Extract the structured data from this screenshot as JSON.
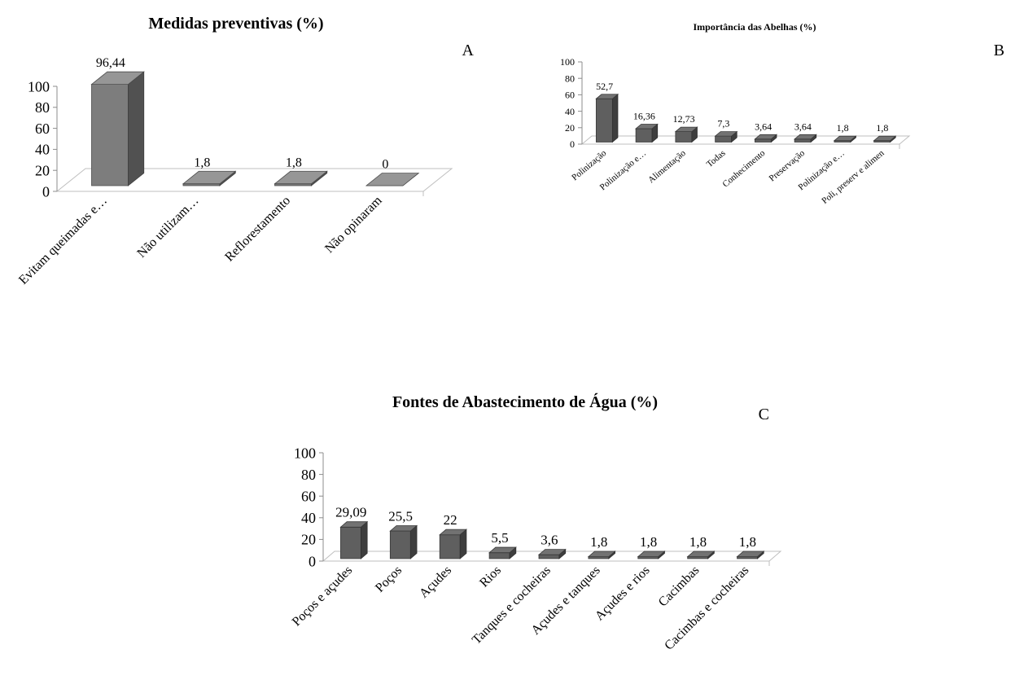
{
  "chart_data": [
    {
      "type": "bar",
      "panel": "A",
      "title": "Medidas preventivas (%)",
      "categories": [
        "Evitam queimadas e…",
        "Não utilizam…",
        "Reflorestamento",
        "Não opinaram"
      ],
      "values": [
        96.44,
        1.8,
        1.8,
        0
      ],
      "value_labels": [
        "96,44",
        "1,8",
        "1,8",
        "0"
      ],
      "yticks": [
        "0",
        "20",
        "40",
        "60",
        "80",
        "100"
      ],
      "ylim": [
        0,
        100
      ],
      "bar_color": "#7d7d7d"
    },
    {
      "type": "bar",
      "panel": "B",
      "title": "Importância das Abelhas (%)",
      "categories": [
        "Polinização",
        "Polinização e…",
        "Alimentação",
        "Todas",
        "Conhecimento",
        "Preservação",
        "Polinização e…",
        "Poli, preserv e alimen"
      ],
      "values": [
        52.7,
        16.36,
        12.73,
        7.3,
        3.64,
        3.64,
        1.8,
        1.8
      ],
      "value_labels": [
        "52,7",
        "16,36",
        "12,73",
        "7,3",
        "3,64",
        "3,64",
        "1,8",
        "1,8"
      ],
      "yticks": [
        "0",
        "20",
        "40",
        "60",
        "80",
        "100"
      ],
      "ylim": [
        0,
        100
      ],
      "bar_color": "#5f5f5f"
    },
    {
      "type": "bar",
      "panel": "C",
      "title": "Fontes de Abastecimento de Água (%)",
      "categories": [
        "Poços e açudes",
        "Poços",
        "Açudes",
        "Rios",
        "Tanques e cocheiras",
        "Açudes e tanques",
        "Açudes e rios",
        "Cacimbas",
        "Cacimbas e cocheiras"
      ],
      "values": [
        29.09,
        25.5,
        22,
        5.5,
        3.6,
        1.8,
        1.8,
        1.8,
        1.8
      ],
      "value_labels": [
        "29,09",
        "25,5",
        "22",
        "5,5",
        "3,6",
        "1,8",
        "1,8",
        "1,8",
        "1,8"
      ],
      "yticks": [
        "0",
        "20",
        "40",
        "60",
        "80",
        "100"
      ],
      "ylim": [
        0,
        100
      ],
      "bar_color": "#5f5f5f"
    }
  ]
}
